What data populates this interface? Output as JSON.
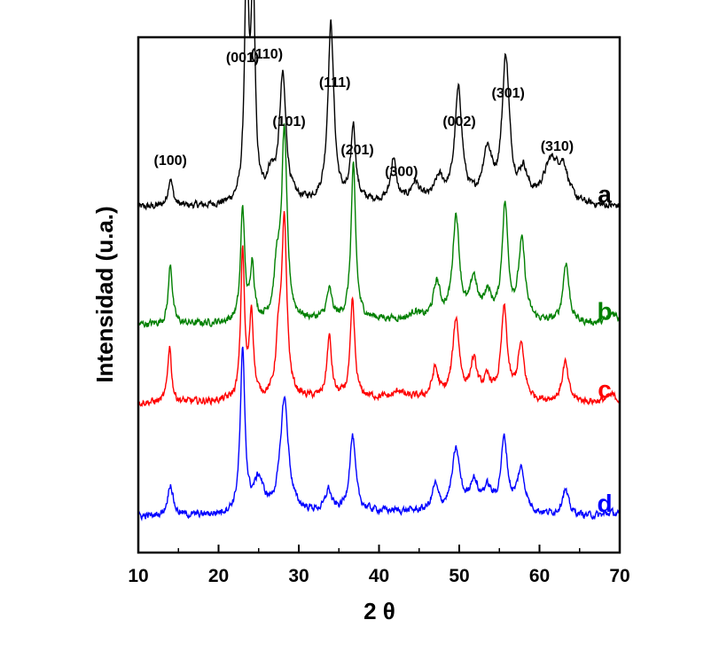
{
  "chart_data": {
    "type": "line",
    "xlabel": "2 θ",
    "ylabel": "Intensidad (u.a.)",
    "xlim": [
      10,
      70
    ],
    "xticks": [
      10,
      20,
      30,
      40,
      50,
      60,
      70
    ],
    "yticks": [],
    "ylim": [
      0,
      1.45
    ],
    "colors": {
      "a": "#000000",
      "b": "#008000",
      "c": "#ff0000",
      "d": "#0000ff"
    },
    "series": [
      {
        "name": "a",
        "color": "#000000",
        "baseline": 0.97,
        "peaks": [
          {
            "x": 14.0,
            "h": 0.08,
            "w": 0.35
          },
          {
            "x": 23.5,
            "h": 0.68,
            "w": 0.3
          },
          {
            "x": 24.3,
            "h": 0.6,
            "w": 0.3
          },
          {
            "x": 26.5,
            "h": 0.07,
            "w": 0.6
          },
          {
            "x": 28.0,
            "h": 0.35,
            "w": 0.5
          },
          {
            "x": 34.0,
            "h": 0.5,
            "w": 0.45
          },
          {
            "x": 36.8,
            "h": 0.21,
            "w": 0.35
          },
          {
            "x": 41.8,
            "h": 0.12,
            "w": 0.4
          },
          {
            "x": 44.5,
            "h": 0.05,
            "w": 0.6
          },
          {
            "x": 47.5,
            "h": 0.06,
            "w": 0.7
          },
          {
            "x": 49.9,
            "h": 0.31,
            "w": 0.55
          },
          {
            "x": 53.5,
            "h": 0.14,
            "w": 0.7
          },
          {
            "x": 55.8,
            "h": 0.4,
            "w": 0.55
          },
          {
            "x": 58.0,
            "h": 0.08,
            "w": 0.6
          },
          {
            "x": 61.5,
            "h": 0.12,
            "w": 1.2
          },
          {
            "x": 63.0,
            "h": 0.08,
            "w": 0.7
          }
        ]
      },
      {
        "name": "b",
        "color": "#008000",
        "baseline": 0.64,
        "peaks": [
          {
            "x": 14.0,
            "h": 0.17,
            "w": 0.3
          },
          {
            "x": 23.0,
            "h": 0.32,
            "w": 0.3
          },
          {
            "x": 24.2,
            "h": 0.16,
            "w": 0.3
          },
          {
            "x": 27.3,
            "h": 0.14,
            "w": 0.45
          },
          {
            "x": 28.2,
            "h": 0.52,
            "w": 0.4
          },
          {
            "x": 33.8,
            "h": 0.08,
            "w": 0.4
          },
          {
            "x": 36.8,
            "h": 0.43,
            "w": 0.35
          },
          {
            "x": 44.5,
            "h": 0.02,
            "w": 0.5
          },
          {
            "x": 47.2,
            "h": 0.1,
            "w": 0.5
          },
          {
            "x": 49.6,
            "h": 0.29,
            "w": 0.5
          },
          {
            "x": 51.8,
            "h": 0.11,
            "w": 0.5
          },
          {
            "x": 53.5,
            "h": 0.07,
            "w": 0.6
          },
          {
            "x": 55.7,
            "h": 0.32,
            "w": 0.45
          },
          {
            "x": 57.8,
            "h": 0.22,
            "w": 0.5
          },
          {
            "x": 63.3,
            "h": 0.17,
            "w": 0.45
          },
          {
            "x": 69.2,
            "h": 0.03,
            "w": 0.8
          }
        ]
      },
      {
        "name": "c",
        "color": "#ff0000",
        "baseline": 0.42,
        "peaks": [
          {
            "x": 13.9,
            "h": 0.16,
            "w": 0.28
          },
          {
            "x": 23.0,
            "h": 0.42,
            "w": 0.28
          },
          {
            "x": 24.1,
            "h": 0.24,
            "w": 0.3
          },
          {
            "x": 27.5,
            "h": 0.15,
            "w": 0.4
          },
          {
            "x": 28.2,
            "h": 0.48,
            "w": 0.38
          },
          {
            "x": 33.8,
            "h": 0.17,
            "w": 0.35
          },
          {
            "x": 36.7,
            "h": 0.27,
            "w": 0.33
          },
          {
            "x": 42.5,
            "h": 0.02,
            "w": 0.5
          },
          {
            "x": 47.0,
            "h": 0.08,
            "w": 0.45
          },
          {
            "x": 49.6,
            "h": 0.22,
            "w": 0.5
          },
          {
            "x": 51.8,
            "h": 0.1,
            "w": 0.5
          },
          {
            "x": 53.5,
            "h": 0.05,
            "w": 0.6
          },
          {
            "x": 55.6,
            "h": 0.25,
            "w": 0.45
          },
          {
            "x": 57.7,
            "h": 0.15,
            "w": 0.5
          },
          {
            "x": 63.2,
            "h": 0.11,
            "w": 0.45
          },
          {
            "x": 69.0,
            "h": 0.02,
            "w": 0.8
          }
        ]
      },
      {
        "name": "d",
        "color": "#0000ff",
        "baseline": 0.1,
        "peaks": [
          {
            "x": 14.0,
            "h": 0.09,
            "w": 0.4
          },
          {
            "x": 23.0,
            "h": 0.45,
            "w": 0.35
          },
          {
            "x": 25.0,
            "h": 0.09,
            "w": 0.7
          },
          {
            "x": 28.2,
            "h": 0.32,
            "w": 0.6
          },
          {
            "x": 33.7,
            "h": 0.06,
            "w": 0.4
          },
          {
            "x": 36.7,
            "h": 0.21,
            "w": 0.45
          },
          {
            "x": 47.0,
            "h": 0.07,
            "w": 0.45
          },
          {
            "x": 49.6,
            "h": 0.17,
            "w": 0.6
          },
          {
            "x": 51.8,
            "h": 0.08,
            "w": 0.6
          },
          {
            "x": 53.5,
            "h": 0.06,
            "w": 0.7
          },
          {
            "x": 55.6,
            "h": 0.2,
            "w": 0.5
          },
          {
            "x": 57.7,
            "h": 0.12,
            "w": 0.6
          },
          {
            "x": 63.2,
            "h": 0.07,
            "w": 0.5
          },
          {
            "x": 69.0,
            "h": 0.01,
            "w": 0.8
          }
        ]
      }
    ],
    "annotations": [
      {
        "text": "(100)",
        "x": 14.0,
        "y": 1.09
      },
      {
        "text": "(001)",
        "x": 23.0,
        "y": 1.38
      },
      {
        "text": "(110)",
        "x": 26.0,
        "y": 1.39
      },
      {
        "text": "(101)",
        "x": 28.8,
        "y": 1.2
      },
      {
        "text": "(111)",
        "x": 34.5,
        "y": 1.31
      },
      {
        "text": "(201)",
        "x": 37.3,
        "y": 1.12
      },
      {
        "text": "(300)",
        "x": 42.8,
        "y": 1.06
      },
      {
        "text": "(002)",
        "x": 50.0,
        "y": 1.2
      },
      {
        "text": "(301)",
        "x": 56.1,
        "y": 1.28
      },
      {
        "text": "(310)",
        "x": 62.2,
        "y": 1.13
      }
    ]
  }
}
